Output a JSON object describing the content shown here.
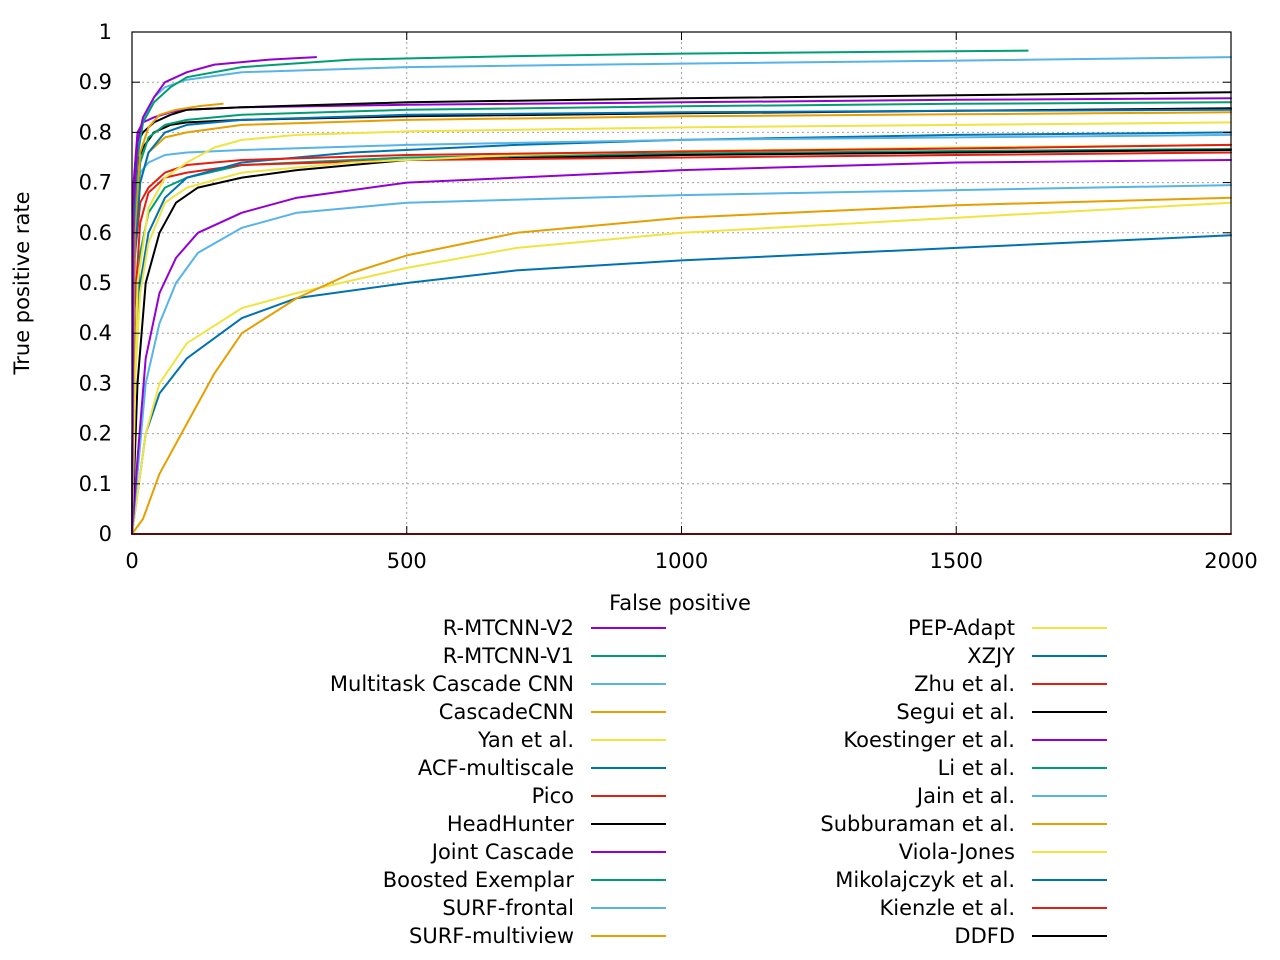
{
  "chart_data": {
    "type": "line",
    "title": "",
    "xlabel": "False positive",
    "ylabel": "True positive rate",
    "xlim": [
      0,
      2000
    ],
    "ylim": [
      0,
      1
    ],
    "xticks": [
      "0",
      "500",
      "1000",
      "1500",
      "2000"
    ],
    "yticks": [
      "0",
      "0.1",
      "0.2",
      "0.3",
      "0.4",
      "0.5",
      "0.6",
      "0.7",
      "0.8",
      "0.9",
      "1"
    ],
    "grid": true,
    "legend_position": "bottom",
    "series": [
      {
        "name": "R-MTCNN-V2",
        "color": "#9400d3",
        "x": [
          0,
          3,
          10,
          20,
          40,
          60,
          100,
          150,
          200,
          250,
          300,
          335
        ],
        "y": [
          0,
          0.65,
          0.78,
          0.83,
          0.87,
          0.9,
          0.92,
          0.935,
          0.94,
          0.945,
          0.948,
          0.95
        ]
      },
      {
        "name": "R-MTCNN-V1",
        "color": "#009e73",
        "x": [
          0,
          3,
          10,
          20,
          40,
          70,
          100,
          200,
          400,
          700,
          1000,
          1300,
          1630
        ],
        "y": [
          0,
          0.6,
          0.75,
          0.82,
          0.86,
          0.89,
          0.91,
          0.93,
          0.945,
          0.952,
          0.957,
          0.96,
          0.963
        ]
      },
      {
        "name": "Multitask Cascade CNN",
        "color": "#56b4e9",
        "x": [
          0,
          3,
          10,
          20,
          40,
          60,
          100,
          200,
          500,
          1000,
          1500,
          2000
        ],
        "y": [
          0,
          0.6,
          0.76,
          0.82,
          0.87,
          0.89,
          0.905,
          0.92,
          0.93,
          0.937,
          0.943,
          0.95
        ]
      },
      {
        "name": "CascadeCNN",
        "color": "#e69f00",
        "x": [
          0,
          5,
          15,
          30,
          50,
          80,
          120,
          165
        ],
        "y": [
          0,
          0.6,
          0.76,
          0.81,
          0.835,
          0.845,
          0.852,
          0.857
        ]
      },
      {
        "name": "Yan et al.",
        "color": "#f0e442",
        "x": [
          0,
          10,
          30,
          60,
          100,
          150,
          200,
          300,
          500,
          1000,
          1500,
          2000
        ],
        "y": [
          0,
          0.5,
          0.65,
          0.71,
          0.74,
          0.77,
          0.785,
          0.795,
          0.802,
          0.81,
          0.815,
          0.82
        ]
      },
      {
        "name": "ACF-multiscale",
        "color": "#0072b2",
        "x": [
          0,
          5,
          15,
          30,
          60,
          100,
          200,
          500,
          1000,
          1500,
          2000
        ],
        "y": [
          0,
          0.55,
          0.7,
          0.76,
          0.8,
          0.815,
          0.825,
          0.835,
          0.84,
          0.843,
          0.845
        ]
      },
      {
        "name": "Pico",
        "color": "#e51e10",
        "x": [
          0,
          5,
          15,
          30,
          60,
          100,
          200,
          500,
          1000,
          1500,
          2000
        ],
        "y": [
          0,
          0.55,
          0.66,
          0.69,
          0.72,
          0.735,
          0.745,
          0.755,
          0.762,
          0.768,
          0.775
        ]
      },
      {
        "name": "HeadHunter",
        "color": "#000000",
        "x": [
          0,
          3,
          10,
          20,
          40,
          70,
          100,
          200,
          500,
          1000,
          1500,
          2000
        ],
        "y": [
          0,
          0.65,
          0.78,
          0.8,
          0.82,
          0.835,
          0.845,
          0.85,
          0.86,
          0.868,
          0.874,
          0.88
        ]
      },
      {
        "name": "Joint Cascade",
        "color": "#9400d3",
        "x": [
          0,
          3,
          10,
          20,
          40,
          70,
          100,
          200,
          500,
          1000,
          1500,
          2000
        ],
        "y": [
          0,
          0.7,
          0.8,
          0.82,
          0.83,
          0.84,
          0.845,
          0.85,
          0.855,
          0.86,
          0.865,
          0.868
        ]
      },
      {
        "name": "Boosted Exemplar",
        "color": "#009e73",
        "x": [
          0,
          5,
          15,
          30,
          60,
          100,
          200,
          500,
          1000,
          1500,
          2000
        ],
        "y": [
          0,
          0.6,
          0.74,
          0.79,
          0.815,
          0.825,
          0.835,
          0.845,
          0.852,
          0.857,
          0.86
        ]
      },
      {
        "name": "SURF-frontal",
        "color": "#56b4e9",
        "x": [
          0,
          5,
          15,
          30,
          60,
          100,
          200,
          500,
          1000,
          1500,
          2000
        ],
        "y": [
          0,
          0.6,
          0.72,
          0.74,
          0.755,
          0.76,
          0.765,
          0.775,
          0.785,
          0.79,
          0.795
        ]
      },
      {
        "name": "SURF-multiview",
        "color": "#e69f00",
        "x": [
          0,
          5,
          15,
          30,
          60,
          100,
          200,
          500,
          1000,
          1500,
          2000
        ],
        "y": [
          0,
          0.55,
          0.7,
          0.76,
          0.79,
          0.8,
          0.815,
          0.825,
          0.832,
          0.836,
          0.84
        ]
      },
      {
        "name": "PEP-Adapt",
        "color": "#f0e442",
        "x": [
          0,
          5,
          15,
          30,
          60,
          100,
          200,
          400,
          700,
          1000,
          1500,
          2000
        ],
        "y": [
          0,
          0.3,
          0.48,
          0.58,
          0.66,
          0.69,
          0.72,
          0.74,
          0.755,
          0.763,
          0.77,
          0.775
        ]
      },
      {
        "name": "XZJY",
        "color": "#0072b2",
        "x": [
          0,
          5,
          15,
          30,
          60,
          100,
          200,
          400,
          700,
          1000,
          1500,
          2000
        ],
        "y": [
          0,
          0.3,
          0.5,
          0.6,
          0.67,
          0.71,
          0.74,
          0.76,
          0.775,
          0.785,
          0.795,
          0.8
        ]
      },
      {
        "name": "Zhu et al.",
        "color": "#e51e10",
        "x": [
          0,
          5,
          15,
          30,
          60,
          100,
          200,
          500,
          1000,
          1500,
          2000
        ],
        "y": [
          0,
          0.45,
          0.62,
          0.68,
          0.71,
          0.72,
          0.735,
          0.745,
          0.75,
          0.755,
          0.76
        ]
      },
      {
        "name": "Segui et al.",
        "color": "#000000",
        "x": [
          0,
          10,
          25,
          50,
          80,
          120,
          200,
          300,
          500,
          1000,
          1500,
          2000
        ],
        "y": [
          0,
          0.3,
          0.5,
          0.6,
          0.66,
          0.69,
          0.71,
          0.725,
          0.745,
          0.755,
          0.76,
          0.765
        ]
      },
      {
        "name": "Koestinger et al.",
        "color": "#9400d3",
        "x": [
          0,
          10,
          25,
          50,
          80,
          120,
          200,
          300,
          500,
          1000,
          1500,
          2000
        ],
        "y": [
          0,
          0.15,
          0.35,
          0.48,
          0.55,
          0.6,
          0.64,
          0.67,
          0.7,
          0.725,
          0.74,
          0.745
        ]
      },
      {
        "name": "Li et al.",
        "color": "#009e73",
        "x": [
          0,
          5,
          15,
          30,
          60,
          100,
          200,
          500,
          1000,
          1500,
          2000
        ],
        "y": [
          0,
          0.35,
          0.56,
          0.64,
          0.69,
          0.71,
          0.735,
          0.75,
          0.758,
          0.763,
          0.767
        ]
      },
      {
        "name": "Jain et al.",
        "color": "#56b4e9",
        "x": [
          0,
          10,
          25,
          50,
          80,
          120,
          200,
          300,
          500,
          1000,
          1500,
          2000
        ],
        "y": [
          0,
          0.12,
          0.3,
          0.42,
          0.5,
          0.56,
          0.61,
          0.64,
          0.66,
          0.675,
          0.685,
          0.695
        ]
      },
      {
        "name": "Subburaman et al.",
        "color": "#e69f00",
        "x": [
          0,
          20,
          50,
          100,
          150,
          200,
          300,
          400,
          500,
          700,
          1000,
          1500,
          2000
        ],
        "y": [
          0,
          0.03,
          0.12,
          0.22,
          0.32,
          0.4,
          0.47,
          0.52,
          0.555,
          0.6,
          0.63,
          0.655,
          0.67
        ]
      },
      {
        "name": "Viola-Jones",
        "color": "#f0e442",
        "x": [
          0,
          10,
          25,
          50,
          100,
          200,
          300,
          500,
          700,
          1000,
          1500,
          2000
        ],
        "y": [
          0,
          0.08,
          0.2,
          0.3,
          0.38,
          0.45,
          0.48,
          0.53,
          0.57,
          0.6,
          0.63,
          0.66
        ]
      },
      {
        "name": "Mikolajczyk et al.",
        "color": "#0072b2",
        "x": [
          0,
          10,
          25,
          50,
          100,
          200,
          300,
          500,
          700,
          1000,
          1500,
          2000
        ],
        "y": [
          0,
          0.08,
          0.2,
          0.28,
          0.35,
          0.43,
          0.47,
          0.5,
          0.525,
          0.545,
          0.57,
          0.595
        ]
      },
      {
        "name": "Kienzle et al.",
        "color": "#e51e10",
        "x": [
          0,
          2000
        ],
        "y": [
          0,
          0
        ]
      },
      {
        "name": "DDFD",
        "color": "#000000",
        "x": [
          0,
          3,
          10,
          20,
          40,
          70,
          100,
          200,
          500,
          1000,
          1500,
          2000
        ],
        "y": [
          0,
          0.6,
          0.74,
          0.77,
          0.8,
          0.815,
          0.82,
          0.825,
          0.832,
          0.838,
          0.843,
          0.848
        ]
      }
    ]
  }
}
